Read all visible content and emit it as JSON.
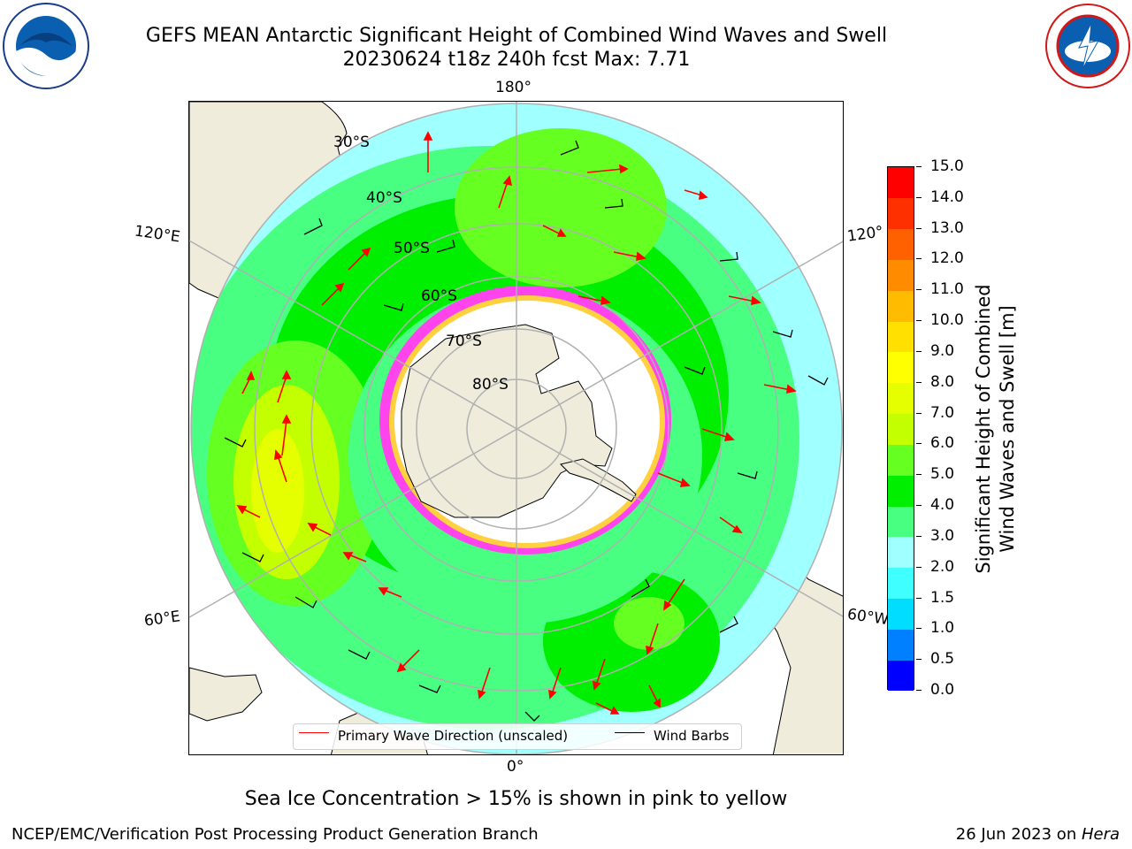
{
  "title": {
    "line1": "GEFS MEAN Antarctic Significant Height of Combined Wind Waves and Swell",
    "line2": "20230624 t18z 240h fcst   Max: 7.71"
  },
  "map": {
    "projection": "south-polar-stereographic",
    "longitude_labels": {
      "top": "180°",
      "bottom": "0°",
      "left_upper": "120°E",
      "left_lower": "60°E",
      "right_upper": "120°",
      "right_lower": "60°W"
    },
    "latitude_labels": [
      "30°S",
      "40°S",
      "50°S",
      "60°S",
      "70°S",
      "80°S"
    ],
    "colors": {
      "land": "#efecdc",
      "ice_shelf": "#ffffff",
      "sea_ice": "#ff44ee",
      "graticule": "#b0b0b0",
      "wave_arrow": "#ff0000",
      "wind_barb": "#000000"
    }
  },
  "legend": {
    "wave_label": "Primary Wave Direction (unscaled)",
    "wind_label": "Wind Barbs"
  },
  "colorbar": {
    "label_line1": "Significant Height of Combined",
    "label_line2": "Wind Waves and Swell [m]",
    "ticks": [
      "0.0",
      "0.5",
      "1.0",
      "1.5",
      "2.0",
      "3.0",
      "4.0",
      "5.0",
      "6.0",
      "7.0",
      "8.0",
      "9.0",
      "10.0",
      "11.0",
      "12.0",
      "13.0",
      "14.0",
      "15.0"
    ],
    "colors": [
      "#0000ff",
      "#0080ff",
      "#00ddff",
      "#40ffff",
      "#a0ffff",
      "#48ff82",
      "#00ee00",
      "#66ff22",
      "#c4ff00",
      "#e6ff00",
      "#ffff00",
      "#ffe000",
      "#ffbb00",
      "#ff8c00",
      "#ff6000",
      "#ff3000",
      "#ff0000"
    ]
  },
  "note": "Sea Ice Concentration > 15% is shown in pink to yellow",
  "footer": {
    "left": "NCEP/EMC/Verification Post Processing Product Generation Branch",
    "right_date": "26 Jun 2023 on ",
    "right_host": "Hera"
  }
}
